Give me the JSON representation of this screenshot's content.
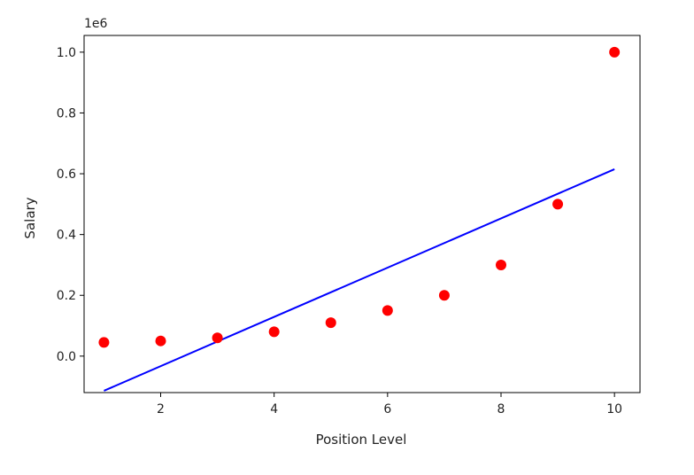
{
  "chart_data": {
    "type": "scatter",
    "title": "",
    "xlabel": "Position Level",
    "ylabel": "Salary",
    "y_multiplier_label": "1e6",
    "xlim": [
      0.65,
      10.45
    ],
    "ylim": [
      -0.12,
      1.055
    ],
    "x_ticks": [
      2,
      4,
      6,
      8,
      10
    ],
    "x_tick_labels": [
      "2",
      "4",
      "6",
      "8",
      "10"
    ],
    "y_ticks": [
      0.0,
      0.2,
      0.4,
      0.6,
      0.8,
      1.0
    ],
    "y_tick_labels": [
      "0.0",
      "0.2",
      "0.4",
      "0.6",
      "0.8",
      "1.0"
    ],
    "grid": false,
    "series": [
      {
        "kind": "scatter",
        "color": "#ff0000",
        "x": [
          1,
          2,
          3,
          4,
          5,
          6,
          7,
          8,
          9,
          10
        ],
        "y": [
          0.045,
          0.05,
          0.06,
          0.08,
          0.11,
          0.15,
          0.2,
          0.3,
          0.5,
          1.0
        ]
      },
      {
        "kind": "line",
        "color": "#0000ff",
        "x": [
          1,
          10
        ],
        "y": [
          -0.114,
          0.615
        ]
      }
    ]
  }
}
